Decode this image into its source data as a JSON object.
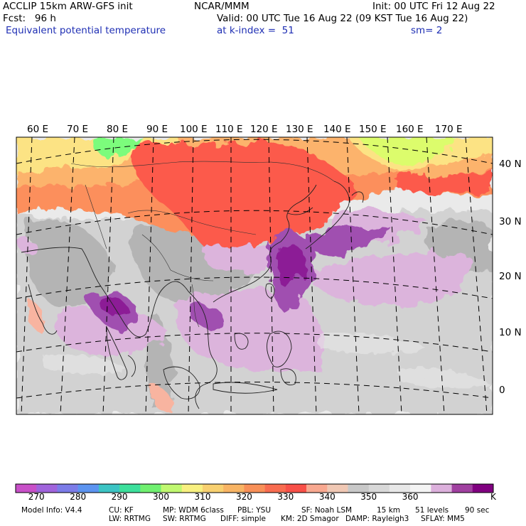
{
  "header": {
    "line1_left": "ACCLIP 15km ARW-GFS init",
    "line1_mid": "NCAR/MMM",
    "line1_right": "Init: 00 UTC Fri 12 Aug 22",
    "line2_left": "Fcst:   96 h",
    "line2_right": "Valid: 00 UTC Tue 16 Aug 22 (09 KST Tue 16 Aug 22)",
    "line3_left": "Equivalent potential temperature",
    "line3_mid": "at k-index =  51",
    "line3_right": "sm= 2"
  },
  "map": {
    "lon_labels": [
      "60 E",
      "70 E",
      "80 E",
      "90 E",
      "100 E",
      "110 E",
      "120 E",
      "130 E",
      "140 E",
      "150 E",
      "160 E",
      "170 E"
    ],
    "lat_labels": [
      "40 N",
      "30 N",
      "20 N",
      "10 N",
      "0"
    ],
    "colors": {
      "hot_red": "#fc5a4c",
      "orange": "#fc8f5c",
      "light_orange": "#fcb36c",
      "yellow": "#fce384",
      "lime": "#dcfc6c",
      "green": "#7cfc7c",
      "salmon": "#f8b4a0",
      "gray_dark": "#b4b4b4",
      "gray_mid": "#d2d2d2",
      "gray_light": "#eaeaea",
      "lavender": "#dcb4dc",
      "violet": "#a050b0",
      "purple": "#8c1c96"
    }
  },
  "colorbar": {
    "colors": [
      "#c850c8",
      "#a064dc",
      "#7c7ce8",
      "#5c94f0",
      "#3cc4c4",
      "#3ce09c",
      "#70f070",
      "#c0f870",
      "#f8f080",
      "#f8d070",
      "#f8b464",
      "#f89058",
      "#f86c50",
      "#f85048",
      "#f8a890",
      "#f0c8b4",
      "#c8c8c8",
      "#d8d8d8",
      "#e8e8e8",
      "#f4f4f4",
      "#dcb0dc",
      "#a040a0",
      "#800080"
    ],
    "labels": [
      "270",
      "280",
      "290",
      "300",
      "310",
      "320",
      "330",
      "340",
      "350",
      "360"
    ],
    "unit": "K"
  },
  "model_info": {
    "line1": [
      "Model Info: V4.4",
      "CU: KF",
      "MP: WDM 6class",
      "PBL: YSU",
      "SF: Noah LSM",
      "15 km",
      "51 levels",
      "90 sec"
    ],
    "line2": [
      "LW: RRTMG",
      "SW: RRTMG",
      "DIFF: simple",
      "KM: 2D Smagor",
      "DAMP: Rayleigh3",
      "SFLAY: MM5"
    ]
  }
}
